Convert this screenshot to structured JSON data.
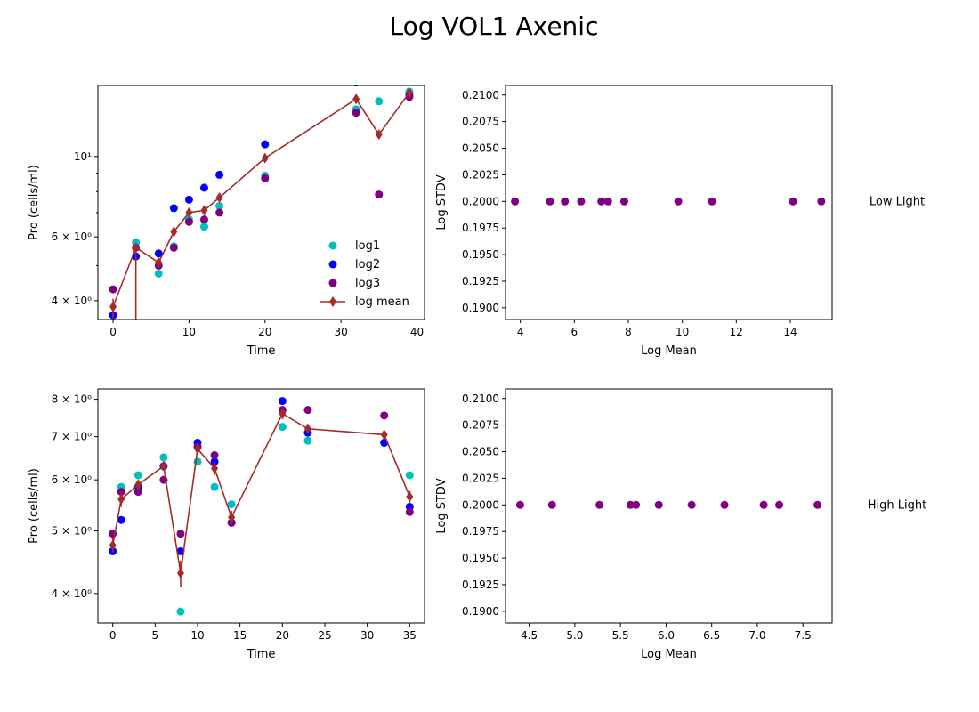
{
  "figure": {
    "title": "Log VOL1 Axenic"
  },
  "chart_data": [
    {
      "id": "low-time",
      "type": "scatter",
      "xlabel": "Time",
      "ylabel": "Pro (cells/ml)",
      "yscale": "log",
      "xlim": [
        -2,
        41
      ],
      "ylim": [
        3.55,
        15.7
      ],
      "xticks": [
        0,
        10,
        20,
        30,
        40
      ],
      "xtick_labels": [
        "0",
        "10",
        "20",
        "30",
        "40"
      ],
      "yticks": [
        4,
        6,
        10
      ],
      "ytick_labels": [
        "4 × 10⁰",
        "6 × 10⁰",
        "10¹"
      ],
      "yminor": [
        5,
        7,
        8,
        9
      ],
      "legend": {
        "position": "lower-right",
        "entries": [
          "log1",
          "log2",
          " log3",
          "log mean"
        ]
      },
      "series": [
        {
          "name": "log1",
          "kind": "points",
          "color": "#00bfbf",
          "x": [
            3,
            6,
            8,
            10,
            12,
            14,
            20,
            32,
            35,
            39
          ],
          "y": [
            5.8,
            4.75,
            5.65,
            6.7,
            6.4,
            7.3,
            8.85,
            13.5,
            14.2,
            15.1
          ]
        },
        {
          "name": "log2",
          "kind": "points",
          "color": "#0000ff",
          "x": [
            0,
            3,
            6,
            8,
            10,
            12,
            14,
            20,
            32,
            39
          ],
          "y": [
            3.65,
            5.3,
            5.4,
            7.2,
            7.6,
            8.2,
            8.9,
            10.8,
            16.0,
            14.8
          ]
        },
        {
          "name": " log3",
          "kind": "points",
          "color": "#800080",
          "x": [
            0,
            3,
            6,
            8,
            10,
            12,
            14,
            20,
            32,
            35,
            39
          ],
          "y": [
            4.3,
            5.6,
            5.0,
            5.6,
            6.6,
            6.7,
            7.0,
            8.7,
            13.2,
            7.85,
            14.6
          ]
        },
        {
          "name": "log mean",
          "kind": "errorline",
          "color": "#a52a2a",
          "x": [
            0,
            3,
            6,
            8,
            10,
            12,
            14,
            20,
            32,
            35,
            39
          ],
          "y": [
            3.85,
            5.6,
            5.1,
            6.2,
            7.0,
            7.1,
            7.7,
            9.9,
            14.4,
            11.5,
            15.0
          ],
          "yerr_low": [
            0.35,
            5.0,
            0.15,
            0.2,
            0.2,
            0.15,
            0.2,
            0.25,
            0.4,
            0.3,
            0.3
          ],
          "yerr_high": [
            0.2,
            0.1,
            0.15,
            0.2,
            0.2,
            0.15,
            0.2,
            0.25,
            0.4,
            0.3,
            0.3
          ]
        }
      ]
    },
    {
      "id": "low-stdv",
      "type": "scatter",
      "xlabel": "Log Mean",
      "ylabel": "Log STDV",
      "xlim": [
        3.45,
        15.55
      ],
      "ylim": [
        0.1889,
        0.2109
      ],
      "xticks": [
        4,
        6,
        8,
        10,
        12,
        14
      ],
      "xtick_labels": [
        "4",
        "6",
        "8",
        "10",
        "12",
        "14"
      ],
      "yticks": [
        0.19,
        0.1925,
        0.195,
        0.1975,
        0.2,
        0.2025,
        0.205,
        0.2075,
        0.21
      ],
      "ytick_labels": [
        "0.1900",
        "0.1925",
        "0.1950",
        "0.1975",
        "0.2000",
        "0.2025",
        "0.2050",
        "0.2075",
        "0.2100"
      ],
      "annotation": "Low Light",
      "series": [
        {
          "kind": "points",
          "color": "#800080",
          "x": [
            3.8,
            5.1,
            5.65,
            6.25,
            7.0,
            7.25,
            7.85,
            9.85,
            11.1,
            14.1,
            15.15
          ],
          "y": [
            0.2,
            0.2,
            0.2,
            0.2,
            0.2,
            0.2,
            0.2,
            0.2,
            0.2,
            0.2,
            0.2
          ]
        }
      ]
    },
    {
      "id": "high-time",
      "type": "scatter",
      "xlabel": "Time",
      "ylabel": "Pro (cells/ml)",
      "yscale": "log",
      "xlim": [
        -1.75,
        36.75
      ],
      "ylim": [
        3.6,
        8.3
      ],
      "xticks": [
        0,
        5,
        10,
        15,
        20,
        25,
        30,
        35
      ],
      "xtick_labels": [
        "0",
        "5",
        "10",
        "15",
        "20",
        "25",
        "30",
        "35"
      ],
      "yticks": [
        4,
        5,
        6,
        7,
        8
      ],
      "ytick_labels": [
        "4 × 10⁰",
        "5 × 10⁰",
        "6 × 10⁰",
        "7 × 10⁰",
        "8 × 10⁰"
      ],
      "yminor": [],
      "series": [
        {
          "name": "log1",
          "kind": "points",
          "color": "#00bfbf",
          "x": [
            0,
            1,
            3,
            6,
            8,
            10,
            12,
            14,
            20,
            23,
            32,
            35
          ],
          "y": [
            4.65,
            5.85,
            6.1,
            6.5,
            3.75,
            6.4,
            5.85,
            5.5,
            7.25,
            6.9,
            6.85,
            6.1
          ]
        },
        {
          "name": "log2",
          "kind": "points",
          "color": "#0000ff",
          "x": [
            0,
            1,
            3,
            6,
            8,
            10,
            12,
            14,
            20,
            23,
            32,
            35
          ],
          "y": [
            4.65,
            5.2,
            5.85,
            6.3,
            4.65,
            6.85,
            6.4,
            5.15,
            7.95,
            7.1,
            6.85,
            5.45
          ]
        },
        {
          "name": " log3",
          "kind": "points",
          "color": "#800080",
          "x": [
            0,
            1,
            3,
            6,
            8,
            10,
            12,
            14,
            20,
            23,
            32,
            35
          ],
          "y": [
            4.95,
            5.75,
            5.75,
            6.0,
            4.95,
            6.75,
            6.55,
            5.15,
            7.7,
            7.7,
            7.55,
            5.35
          ]
        },
        {
          "name": "log mean",
          "kind": "errorline",
          "color": "#a52a2a",
          "x": [
            0,
            1,
            3,
            6,
            8,
            10,
            12,
            14,
            20,
            23,
            32,
            35
          ],
          "y": [
            4.75,
            5.6,
            5.9,
            6.3,
            4.3,
            6.7,
            6.25,
            5.25,
            7.6,
            7.2,
            7.05,
            5.65
          ],
          "yerr_low": [
            0.12,
            0.15,
            0.1,
            0.1,
            0.2,
            0.15,
            0.15,
            0.12,
            0.15,
            0.12,
            0.1,
            0.12
          ],
          "yerr_high": [
            0.12,
            0.15,
            0.1,
            0.1,
            0.2,
            0.15,
            0.15,
            0.12,
            0.15,
            0.12,
            0.1,
            0.12
          ]
        }
      ]
    },
    {
      "id": "high-stdv",
      "type": "scatter",
      "xlabel": "Log Mean",
      "ylabel": "Log STDV",
      "xlim": [
        4.24,
        7.82
      ],
      "ylim": [
        0.1889,
        0.2109
      ],
      "xticks": [
        4.5,
        5.0,
        5.5,
        6.0,
        6.5,
        7.0,
        7.5
      ],
      "xtick_labels": [
        "4.5",
        "5.0",
        "5.5",
        "6.0",
        "6.5",
        "7.0",
        "7.5"
      ],
      "yticks": [
        0.19,
        0.1925,
        0.195,
        0.1975,
        0.2,
        0.2025,
        0.205,
        0.2075,
        0.21
      ],
      "ytick_labels": [
        "0.1900",
        "0.1925",
        "0.1950",
        "0.1975",
        "0.2000",
        "0.2025",
        "0.2050",
        "0.2075",
        "0.2100"
      ],
      "annotation": "High Light",
      "series": [
        {
          "kind": "points",
          "color": "#800080",
          "x": [
            4.4,
            4.75,
            5.27,
            5.61,
            5.67,
            5.92,
            6.28,
            6.64,
            7.07,
            7.24,
            7.66
          ],
          "y": [
            0.2,
            0.2,
            0.2,
            0.2,
            0.2,
            0.2,
            0.2,
            0.2,
            0.2,
            0.2,
            0.2
          ]
        }
      ]
    }
  ]
}
